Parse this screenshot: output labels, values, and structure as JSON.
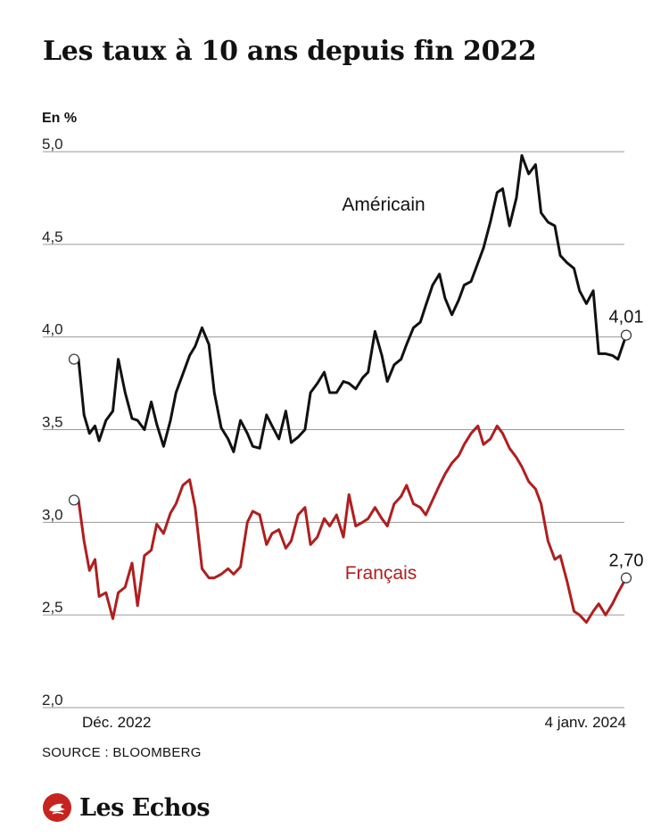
{
  "header": {
    "title": "Les taux à 10 ans depuis fin 2022",
    "unit": "En %"
  },
  "footer": {
    "source": "SOURCE : BLOOMBERG",
    "brand": "Les Echos"
  },
  "colors": {
    "us": "#111111",
    "fr": "#b01e1e",
    "grid": "#9a9a9a",
    "brand": "#c8231e"
  },
  "chart_data": {
    "type": "line",
    "title": "Les taux à 10 ans depuis fin 2022",
    "ylabel": "En %",
    "ylim": [
      2.0,
      5.0
    ],
    "yticks": [
      2.0,
      2.5,
      3.0,
      3.5,
      4.0,
      4.5,
      5.0
    ],
    "ytick_labels": [
      "2,0",
      "2,5",
      "3,0",
      "3,5",
      "4,0",
      "4,5",
      "5,0"
    ],
    "xlim": [
      "2022-12-01",
      "2024-01-04"
    ],
    "x_labels": [
      "Déc. 2022",
      "4 janv. 2024"
    ],
    "grid": true,
    "series": [
      {
        "name": "Américain",
        "color": "#111111",
        "end_label": "4,01",
        "x": [
          "2022-12-01",
          "2022-12-05",
          "2022-12-09",
          "2022-12-13",
          "2022-12-16",
          "2022-12-21",
          "2022-12-26",
          "2022-12-30",
          "2023-01-04",
          "2023-01-09",
          "2023-01-13",
          "2023-01-18",
          "2023-01-23",
          "2023-01-27",
          "2023-02-01",
          "2023-02-06",
          "2023-02-10",
          "2023-02-15",
          "2023-02-20",
          "2023-02-24",
          "2023-03-01",
          "2023-03-06",
          "2023-03-10",
          "2023-03-15",
          "2023-03-20",
          "2023-03-24",
          "2023-03-29",
          "2023-04-03",
          "2023-04-07",
          "2023-04-12",
          "2023-04-17",
          "2023-04-21",
          "2023-04-26",
          "2023-05-01",
          "2023-05-05",
          "2023-05-10",
          "2023-05-15",
          "2023-05-19",
          "2023-05-24",
          "2023-05-29",
          "2023-06-02",
          "2023-06-07",
          "2023-06-12",
          "2023-06-16",
          "2023-06-21",
          "2023-06-26",
          "2023-06-30",
          "2023-07-05",
          "2023-07-10",
          "2023-07-14",
          "2023-07-19",
          "2023-07-24",
          "2023-07-28",
          "2023-08-02",
          "2023-08-07",
          "2023-08-11",
          "2023-08-16",
          "2023-08-21",
          "2023-08-25",
          "2023-08-30",
          "2023-09-04",
          "2023-09-08",
          "2023-09-13",
          "2023-09-18",
          "2023-09-22",
          "2023-09-27",
          "2023-10-02",
          "2023-10-06",
          "2023-10-11",
          "2023-10-16",
          "2023-10-20",
          "2023-10-25",
          "2023-10-30",
          "2023-11-03",
          "2023-11-08",
          "2023-11-13",
          "2023-11-17",
          "2023-11-22",
          "2023-11-27",
          "2023-12-01",
          "2023-12-06",
          "2023-12-11",
          "2023-12-15",
          "2023-12-20",
          "2023-12-25",
          "2023-12-29",
          "2024-01-04"
        ],
        "values": [
          3.88,
          3.58,
          3.48,
          3.52,
          3.44,
          3.55,
          3.6,
          3.88,
          3.7,
          3.56,
          3.55,
          3.5,
          3.65,
          3.53,
          3.41,
          3.55,
          3.7,
          3.8,
          3.9,
          3.95,
          4.05,
          3.96,
          3.7,
          3.51,
          3.45,
          3.38,
          3.55,
          3.48,
          3.41,
          3.4,
          3.58,
          3.52,
          3.45,
          3.6,
          3.43,
          3.46,
          3.5,
          3.7,
          3.75,
          3.81,
          3.7,
          3.7,
          3.76,
          3.75,
          3.72,
          3.78,
          3.81,
          4.03,
          3.9,
          3.76,
          3.85,
          3.88,
          3.96,
          4.05,
          4.08,
          4.17,
          4.28,
          4.34,
          4.21,
          4.12,
          4.2,
          4.28,
          4.3,
          4.4,
          4.48,
          4.62,
          4.78,
          4.8,
          4.6,
          4.75,
          4.98,
          4.88,
          4.93,
          4.67,
          4.62,
          4.6,
          4.44,
          4.4,
          4.37,
          4.25,
          4.18,
          4.25,
          3.91,
          3.91,
          3.9,
          3.88,
          4.01
        ]
      },
      {
        "name": "Français",
        "color": "#b01e1e",
        "end_label": "2,70",
        "x": [
          "2022-12-01",
          "2022-12-05",
          "2022-12-09",
          "2022-12-13",
          "2022-12-16",
          "2022-12-21",
          "2022-12-26",
          "2022-12-30",
          "2023-01-04",
          "2023-01-09",
          "2023-01-13",
          "2023-01-18",
          "2023-01-23",
          "2023-01-27",
          "2023-02-01",
          "2023-02-06",
          "2023-02-10",
          "2023-02-15",
          "2023-02-20",
          "2023-02-24",
          "2023-03-01",
          "2023-03-06",
          "2023-03-10",
          "2023-03-15",
          "2023-03-20",
          "2023-03-24",
          "2023-03-29",
          "2023-04-03",
          "2023-04-07",
          "2023-04-12",
          "2023-04-17",
          "2023-04-21",
          "2023-04-26",
          "2023-05-01",
          "2023-05-05",
          "2023-05-10",
          "2023-05-15",
          "2023-05-19",
          "2023-05-24",
          "2023-05-29",
          "2023-06-02",
          "2023-06-07",
          "2023-06-12",
          "2023-06-16",
          "2023-06-21",
          "2023-06-26",
          "2023-06-30",
          "2023-07-05",
          "2023-07-10",
          "2023-07-14",
          "2023-07-19",
          "2023-07-24",
          "2023-07-28",
          "2023-08-02",
          "2023-08-07",
          "2023-08-11",
          "2023-08-16",
          "2023-08-21",
          "2023-08-25",
          "2023-08-30",
          "2023-09-04",
          "2023-09-08",
          "2023-09-13",
          "2023-09-18",
          "2023-09-22",
          "2023-09-27",
          "2023-10-02",
          "2023-10-06",
          "2023-10-11",
          "2023-10-16",
          "2023-10-20",
          "2023-10-25",
          "2023-10-30",
          "2023-11-03",
          "2023-11-08",
          "2023-11-13",
          "2023-11-17",
          "2023-11-22",
          "2023-11-27",
          "2023-12-01",
          "2023-12-06",
          "2023-12-11",
          "2023-12-15",
          "2023-12-20",
          "2023-12-25",
          "2023-12-29",
          "2024-01-04"
        ],
        "values": [
          3.12,
          2.9,
          2.74,
          2.8,
          2.6,
          2.62,
          2.48,
          2.62,
          2.65,
          2.78,
          2.55,
          2.82,
          2.85,
          2.99,
          2.94,
          3.05,
          3.1,
          3.2,
          3.23,
          3.08,
          2.75,
          2.7,
          2.7,
          2.72,
          2.75,
          2.72,
          2.76,
          3.0,
          3.06,
          3.04,
          2.88,
          2.94,
          2.96,
          2.86,
          2.9,
          3.04,
          3.08,
          2.88,
          2.92,
          3.02,
          2.98,
          3.04,
          2.92,
          3.15,
          2.98,
          3.0,
          3.02,
          3.08,
          3.02,
          2.98,
          3.1,
          3.14,
          3.2,
          3.1,
          3.08,
          3.04,
          3.12,
          3.2,
          3.26,
          3.32,
          3.36,
          3.42,
          3.48,
          3.52,
          3.42,
          3.45,
          3.52,
          3.48,
          3.4,
          3.35,
          3.3,
          3.22,
          3.18,
          3.1,
          2.9,
          2.8,
          2.82,
          2.68,
          2.52,
          2.5,
          2.46,
          2.52,
          2.56,
          2.5,
          2.56,
          2.62,
          2.7
        ]
      }
    ]
  }
}
